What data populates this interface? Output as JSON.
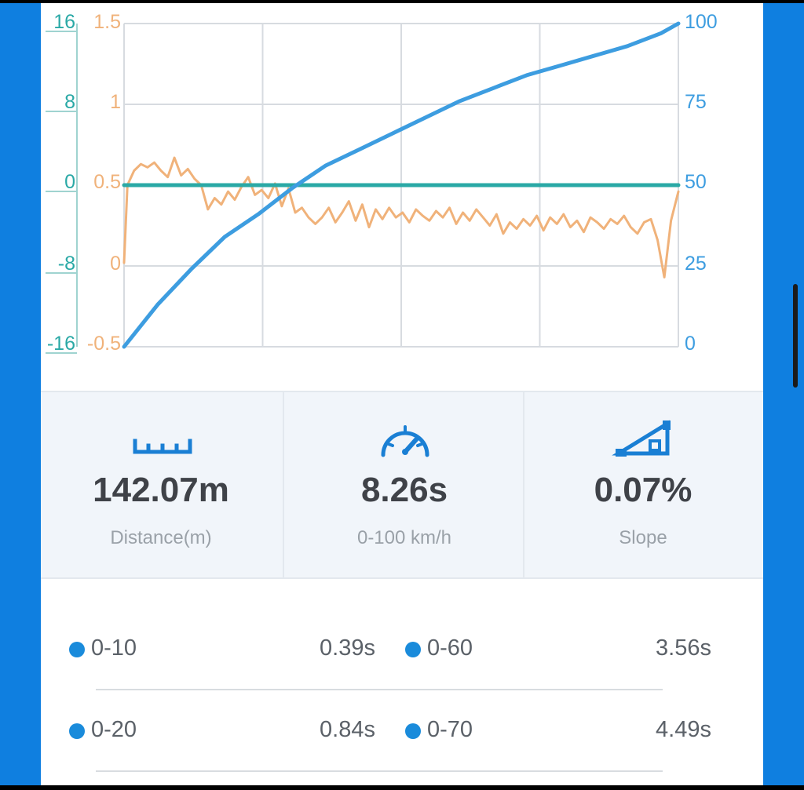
{
  "chart_data": {
    "type": "line",
    "axes": {
      "left_outer": {
        "ticks": [
          "16",
          "8",
          "0",
          "-8",
          "-16"
        ],
        "range": [
          -16,
          16
        ],
        "color": "#2aa9a6"
      },
      "left_inner": {
        "ticks": [
          "1.5",
          "1",
          "0.5",
          "0",
          "-0.5"
        ],
        "range": [
          -0.5,
          1.5
        ],
        "color": "#f0b27a"
      },
      "right": {
        "ticks": [
          "100",
          "75",
          "50",
          "25",
          "0"
        ],
        "range": [
          0,
          100
        ],
        "color": "#3d9de0"
      }
    },
    "x_range": [
      0,
      8.26
    ],
    "grid": true,
    "series": [
      {
        "axis": "right",
        "color": "#3d9de0",
        "x": [
          0,
          0.5,
          1,
          1.5,
          2,
          2.5,
          3,
          3.5,
          4,
          4.5,
          5,
          5.5,
          6,
          6.5,
          7,
          7.5,
          8,
          8.26
        ],
        "y": [
          0,
          13,
          24,
          34,
          41,
          49,
          56,
          61,
          66,
          71,
          76,
          80,
          84,
          87,
          90,
          93,
          97,
          100
        ]
      },
      {
        "axis": "left_outer",
        "color": "#2aa9a6",
        "x": [
          0,
          8.26
        ],
        "y": [
          0,
          0
        ]
      },
      {
        "axis": "left_inner",
        "color": "#f0b27a",
        "x": [
          0,
          0.05,
          0.15,
          0.25,
          0.35,
          0.45,
          0.55,
          0.65,
          0.75,
          0.85,
          0.95,
          1.05,
          1.15,
          1.25,
          1.35,
          1.45,
          1.55,
          1.65,
          1.75,
          1.85,
          1.95,
          2.05,
          2.15,
          2.25,
          2.35,
          2.45,
          2.55,
          2.65,
          2.75,
          2.85,
          2.95,
          3.05,
          3.15,
          3.25,
          3.35,
          3.45,
          3.55,
          3.65,
          3.75,
          3.85,
          3.95,
          4.05,
          4.15,
          4.25,
          4.35,
          4.45,
          4.55,
          4.65,
          4.75,
          4.85,
          4.95,
          5.05,
          5.15,
          5.25,
          5.35,
          5.45,
          5.55,
          5.65,
          5.75,
          5.85,
          5.95,
          6.05,
          6.15,
          6.25,
          6.35,
          6.45,
          6.55,
          6.65,
          6.75,
          6.85,
          6.95,
          7.05,
          7.15,
          7.25,
          7.35,
          7.45,
          7.55,
          7.65,
          7.75,
          7.85,
          7.95,
          8.05,
          8.15,
          8.26
        ],
        "y": [
          0.02,
          0.5,
          0.59,
          0.63,
          0.61,
          0.64,
          0.59,
          0.55,
          0.67,
          0.56,
          0.6,
          0.54,
          0.5,
          0.35,
          0.42,
          0.38,
          0.46,
          0.41,
          0.49,
          0.55,
          0.44,
          0.47,
          0.42,
          0.51,
          0.37,
          0.48,
          0.33,
          0.36,
          0.3,
          0.26,
          0.3,
          0.36,
          0.27,
          0.33,
          0.4,
          0.28,
          0.38,
          0.24,
          0.35,
          0.29,
          0.36,
          0.3,
          0.33,
          0.27,
          0.35,
          0.31,
          0.28,
          0.34,
          0.3,
          0.36,
          0.26,
          0.33,
          0.28,
          0.35,
          0.3,
          0.25,
          0.32,
          0.2,
          0.27,
          0.23,
          0.29,
          0.25,
          0.31,
          0.22,
          0.3,
          0.26,
          0.32,
          0.24,
          0.28,
          0.21,
          0.3,
          0.27,
          0.23,
          0.29,
          0.26,
          0.31,
          0.24,
          0.2,
          0.27,
          0.29,
          0.16,
          -0.07,
          0.28,
          0.46
        ]
      }
    ]
  },
  "stats": [
    {
      "icon": "ruler-icon",
      "value": "142.07m",
      "label": "Distance(m)"
    },
    {
      "icon": "speedometer-icon",
      "value": "8.26s",
      "label": "0-100 km/h"
    },
    {
      "icon": "slope-icon",
      "value": "0.07%",
      "label": "Slope"
    }
  ],
  "splits": [
    [
      {
        "range": "0-10",
        "time": "0.39s"
      },
      {
        "range": "0-60",
        "time": "3.56s"
      }
    ],
    [
      {
        "range": "0-20",
        "time": "0.84s"
      },
      {
        "range": "0-70",
        "time": "4.49s"
      }
    ]
  ],
  "colors": {
    "accent": "#1a8bdb",
    "background": "#0f7fe0"
  }
}
